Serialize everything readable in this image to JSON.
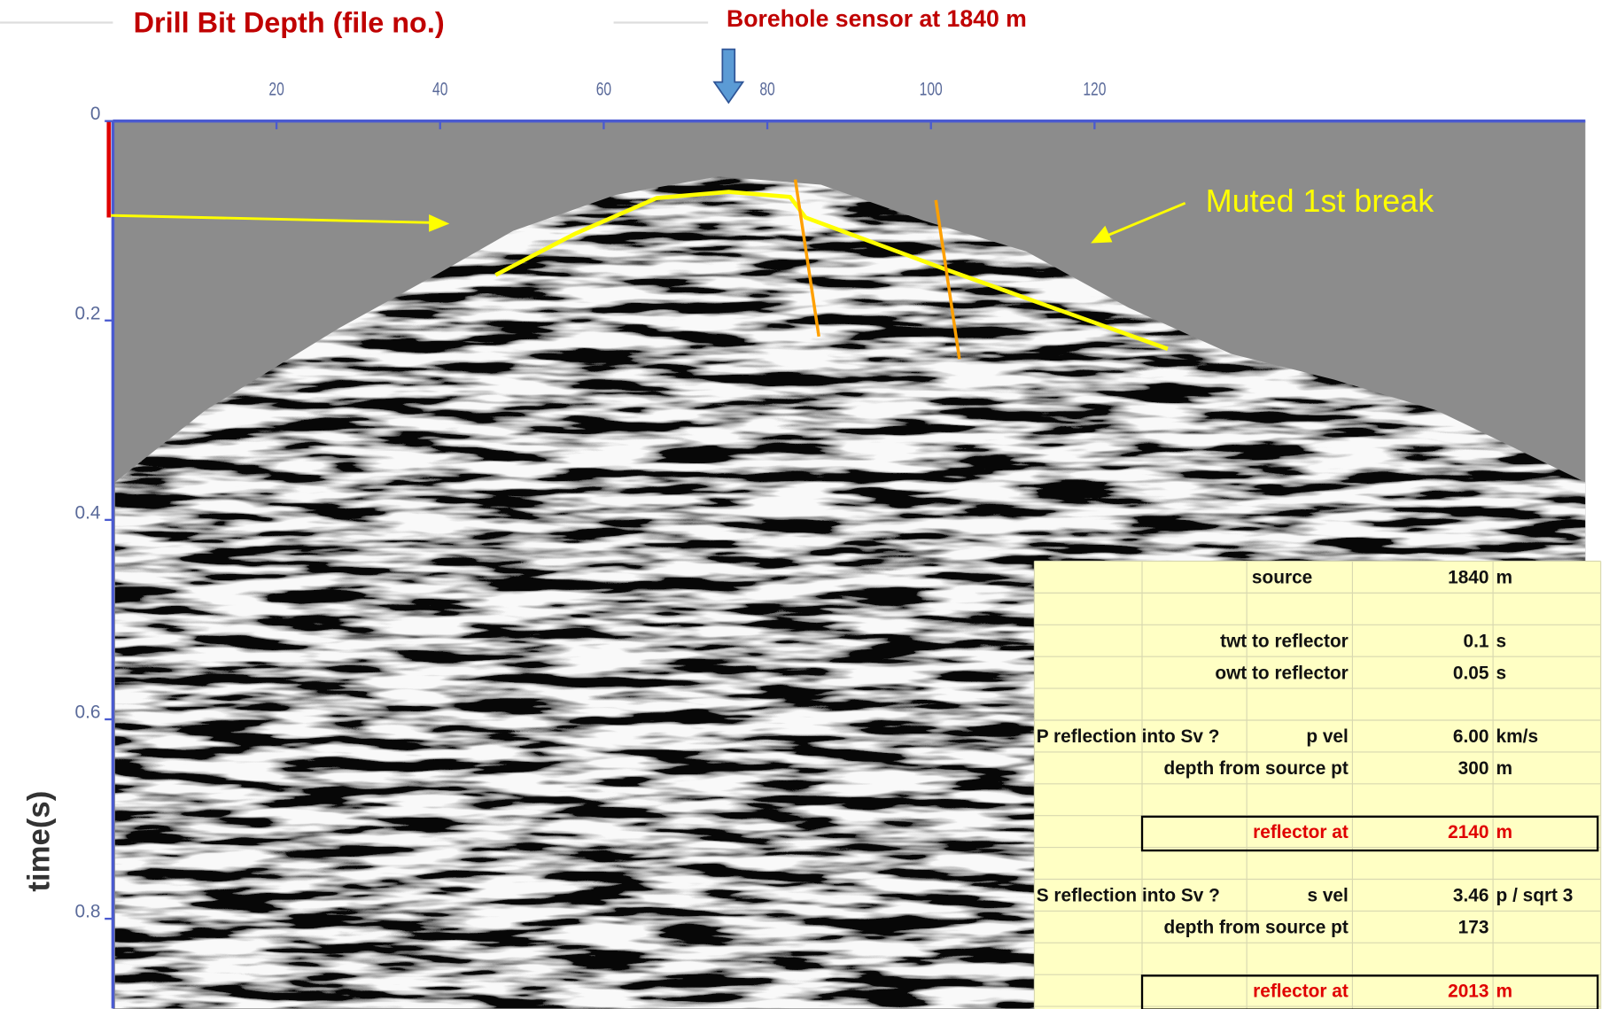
{
  "chart_data": {
    "type": "seismic",
    "title": "Drill Bit Depth (file no.)",
    "subtitle": "Borehole sensor at 1840 m",
    "annotation": "Muted 1st break",
    "y_label": "time(s)",
    "xlim": [
      0,
      180
    ],
    "xticks": [
      20,
      40,
      60,
      80,
      100,
      120
    ],
    "ylim": [
      0,
      0.89
    ],
    "yticks": [
      0,
      0.2,
      0.4,
      0.6,
      0.8
    ],
    "axis_color": "#4a5ad0",
    "tick_label_color": "#5a6a9a"
  },
  "table": {
    "rows": [
      {
        "label": "source",
        "value": "1840",
        "unit": "m"
      },
      {
        "label": "twt to reflector",
        "value": "0.1",
        "unit": "s"
      },
      {
        "label": "owt to reflector",
        "value": "0.05",
        "unit": "s"
      },
      {
        "heading": "P reflection into Sv ?",
        "label": "p vel",
        "value": "6.00",
        "unit": "km/s"
      },
      {
        "label": "depth from source pt",
        "value": "300",
        "unit": "m"
      },
      {
        "label": "reflector at",
        "value": "2140",
        "unit": "m",
        "boxed": true
      },
      {
        "heading": "S reflection into Sv ?",
        "label": "s vel",
        "value": "3.46",
        "unit": "p / sqrt 3"
      },
      {
        "label": "depth from source pt",
        "value": "173"
      },
      {
        "label": "reflector at",
        "value": "2013",
        "unit": "m",
        "boxed": true
      }
    ]
  }
}
